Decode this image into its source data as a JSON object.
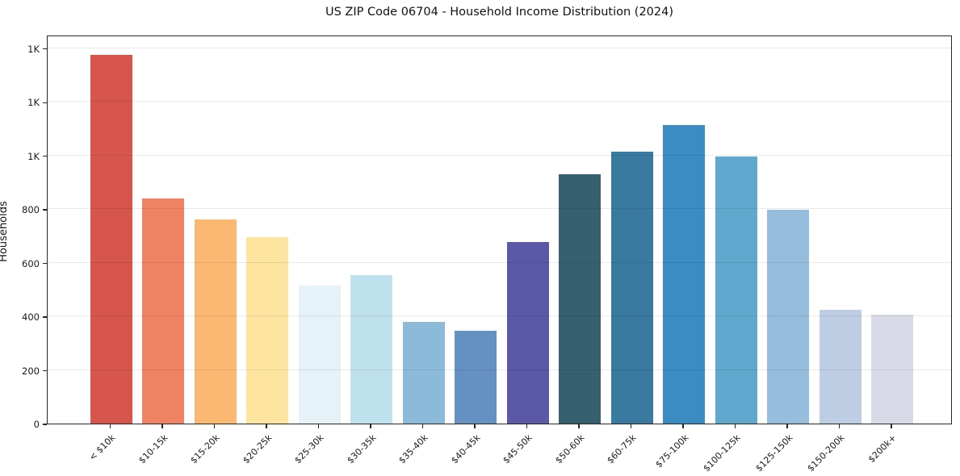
{
  "chart_data": {
    "type": "bar",
    "title": "US ZIP Code 06704 - Household Income Distribution (2024)",
    "xlabel": "",
    "ylabel": "Households",
    "categories": [
      "< $10k",
      "$10-15k",
      "$15-20k",
      "$20-25k",
      "$25-30k",
      "$30-35k",
      "$35-40k",
      "$40-45k",
      "$45-50k",
      "$50-60k",
      "$60-75k",
      "$75-100k",
      "$100-125k",
      "$125-150k",
      "$150-200k",
      "$200k+"
    ],
    "values": [
      1375,
      840,
      760,
      695,
      515,
      553,
      380,
      347,
      677,
      929,
      1015,
      1114,
      995,
      797,
      423,
      405
    ],
    "bar_colors": [
      "#d6564e",
      "#f08264",
      "#fab873",
      "#fde5a0",
      "#e5f2f8",
      "#bfe0ed",
      "#8cbadb",
      "#6590c2",
      "#5b58a8",
      "#36606f",
      "#3a7aa0",
      "#3a8cc3",
      "#60a8cd",
      "#96bddc",
      "#bccde4",
      "#d9dae8"
    ],
    "ylim": [
      0,
      1450
    ],
    "yticks": [
      {
        "value": 0,
        "label": "0"
      },
      {
        "value": 200,
        "label": "200"
      },
      {
        "value": 400,
        "label": "400"
      },
      {
        "value": 600,
        "label": "600"
      },
      {
        "value": 800,
        "label": "800"
      },
      {
        "value": 1000,
        "label": "1K"
      },
      {
        "value": 1200,
        "label": "1K"
      },
      {
        "value": 1400,
        "label": "1K"
      }
    ],
    "grid": "horizontal",
    "legend": "none"
  }
}
